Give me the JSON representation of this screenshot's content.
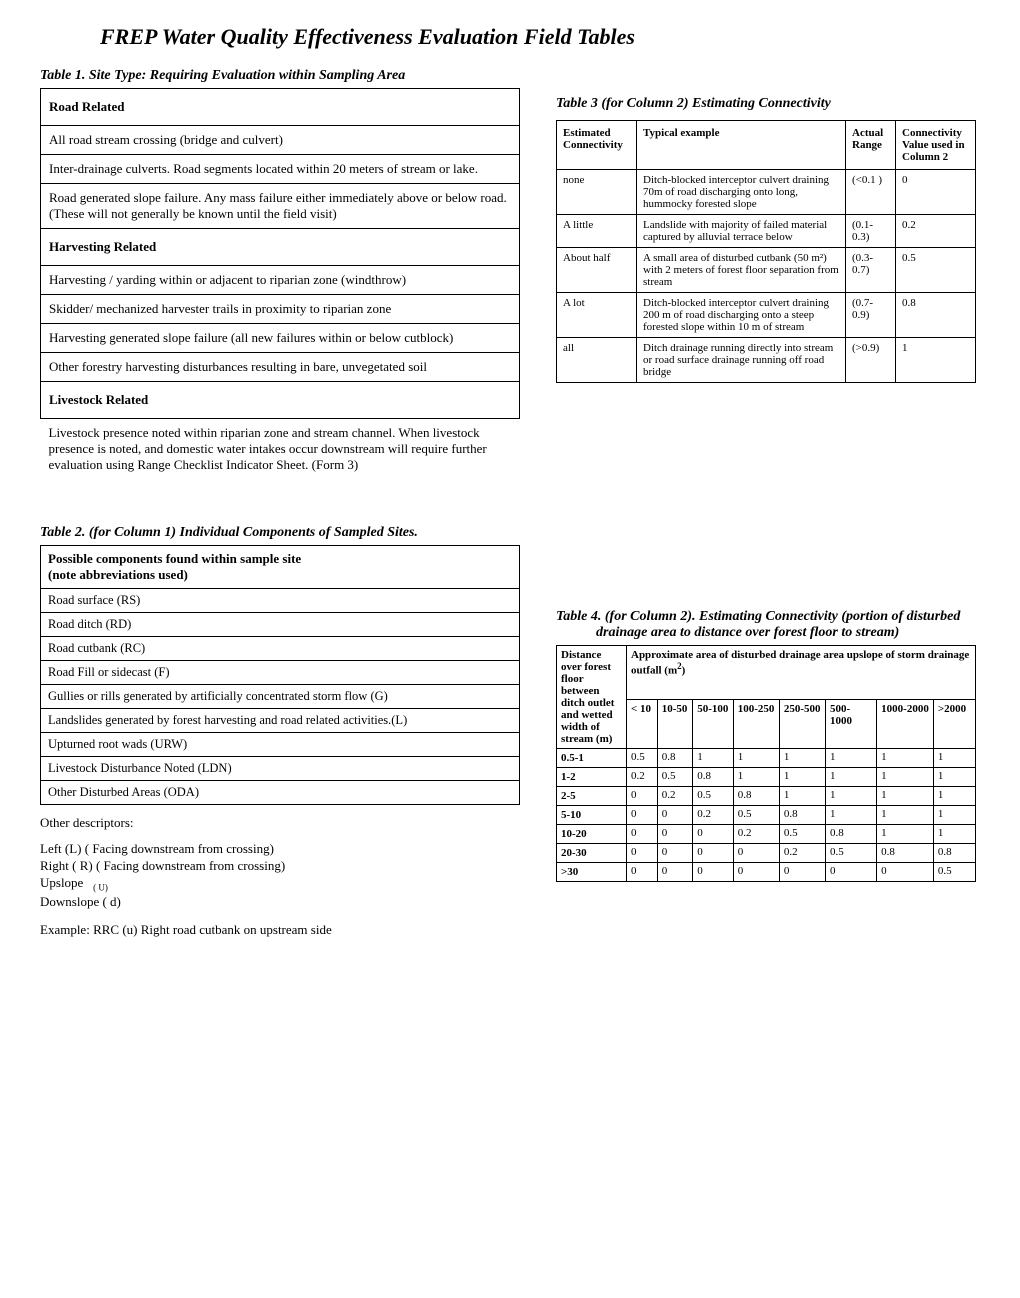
{
  "page_title": "FREP Water Quality Effectiveness Evaluation Field Tables",
  "table1": {
    "caption": "Table 1. Site Type: Requiring Evaluation within Sampling Area",
    "sections": [
      {
        "header": "Road Related",
        "rows": [
          "All road stream crossing  (bridge and culvert)",
          "Inter-drainage culverts. Road segments located within 20 meters of stream or lake.",
          " Road generated slope failure. Any mass failure either immediately above or below road.   (These will not generally be known until the field visit)"
        ]
      },
      {
        "header": "Harvesting Related",
        "rows": [
          " Harvesting / yarding  within or adjacent to riparian zone (windthrow)",
          "Skidder/ mechanized harvester trails in proximity to riparian zone",
          "Harvesting generated slope failure (all new failures within or below cutblock)",
          "Other forestry harvesting disturbances resulting in bare, unvegetated soil"
        ]
      },
      {
        "header": "Livestock Related",
        "rows": [
          "Livestock presence noted within riparian zone and stream channel. When livestock presence is noted, and domestic water intakes occur downstream will require further evaluation using Range Checklist Indicator Sheet. (Form 3)"
        ],
        "last_no_border": true
      }
    ]
  },
  "table2": {
    "caption": "Table 2. (for Column 1) Individual Components of Sampled Sites.",
    "header": "Possible components found within sample site\n(note abbreviations used)",
    "rows": [
      "Road surface  (RS)",
      "Road ditch (RD)",
      "Road cutbank (RC)",
      "Road Fill or  sidecast  (F)",
      "Gullies or rills generated  by artificially concentrated storm flow (G)",
      "Landslides generated by forest harvesting and road related activities.(L)",
      "Upturned root wads (URW)",
      "Livestock Disturbance Noted (LDN)",
      "Other Disturbed Areas (ODA)"
    ],
    "other_label": "Other descriptors:",
    "other_lines": [
      "Left    (L) ( Facing downstream from crossing)",
      "Right ( R) ( Facing downstream from crossing)",
      "Upslope",
      "Downslope ( d)"
    ],
    "upslope_sub": "( U)",
    "example": "Example:  RRC (u)  Right road cutbank on upstream side"
  },
  "table3": {
    "caption": "Table 3 (for Column 2) Estimating Connectivity",
    "headers": [
      "Estimated Connectivity",
      "Typical example",
      "Actual Range",
      "Connectivity Value  used in Column 2"
    ],
    "rows": [
      [
        "none",
        "Ditch-blocked interceptor culvert draining 70m of road discharging onto long, hummocky forested slope",
        "(<0.1 )",
        "0"
      ],
      [
        "A little",
        "Landslide with majority of failed material captured by alluvial terrace below",
        "(0.1- 0.3)",
        "0.2"
      ],
      [
        "About half",
        "A small area of  disturbed cutbank (50 m²) with 2 meters of forest floor separation from stream",
        "(0.3- 0.7)",
        "0.5"
      ],
      [
        "A lot",
        "Ditch-blocked interceptor culvert draining 200 m of road discharging onto a steep forested slope within 10 m of stream",
        "(0.7- 0.9)",
        "0.8"
      ],
      [
        "all",
        "Ditch drainage running directly into stream or road surface drainage running off road bridge",
        "(>0.9)",
        "1"
      ]
    ]
  },
  "table4": {
    "caption": "Table 4.  (for Column 2). Estimating Connectivity (portion of disturbed drainage area to distance over forest floor to stream)",
    "corner_header": "Distance over forest floor between ditch outlet and wetted width of stream (m)",
    "super_header": "Approximate area of disturbed drainage area upslope of storm drainage outfall   (m²)",
    "col_headers": [
      "< 10",
      "10-50",
      "50-100",
      "100-250",
      "250-500",
      "500-1000",
      "1000-2000",
      ">2000"
    ],
    "rows": [
      {
        "label": "0.5-1",
        "vals": [
          "0.5",
          "0.8",
          "1",
          "1",
          "1",
          "1",
          "1",
          "1"
        ]
      },
      {
        "label": "1-2",
        "vals": [
          "0.2",
          "0.5",
          "0.8",
          "1",
          "1",
          "1",
          "1",
          "1"
        ]
      },
      {
        "label": "2-5",
        "vals": [
          "0",
          "0.2",
          "0.5",
          "0.8",
          "1",
          "1",
          "1",
          "1"
        ]
      },
      {
        "label": "5-10",
        "vals": [
          "0",
          "0",
          "0.2",
          "0.5",
          "0.8",
          "1",
          "1",
          "1"
        ]
      },
      {
        "label": "10-20",
        "vals": [
          "0",
          "0",
          "0",
          "0.2",
          "0.5",
          "0.8",
          "1",
          "1"
        ]
      },
      {
        "label": "20-30",
        "vals": [
          "0",
          "0",
          "0",
          "0",
          "0.2",
          "0.5",
          "0.8",
          "0.8"
        ]
      },
      {
        "label": ">30",
        "vals": [
          "0",
          "0",
          "0",
          "0",
          "0",
          "0",
          "0",
          "0.5"
        ]
      }
    ]
  }
}
